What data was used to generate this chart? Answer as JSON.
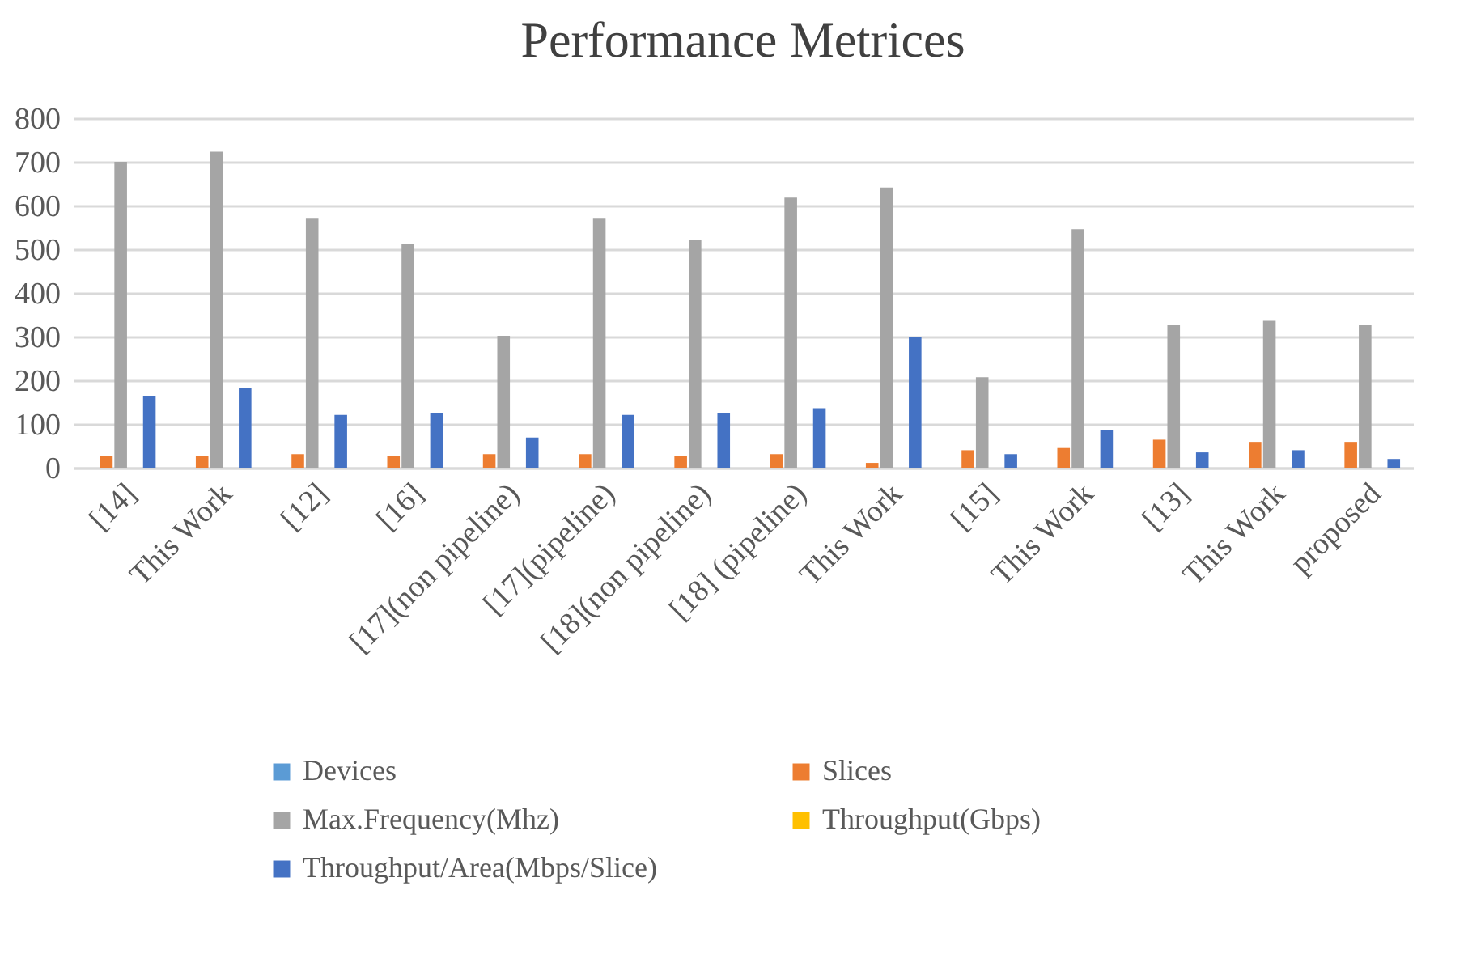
{
  "chart_data": {
    "type": "bar",
    "title": "Performance Metrices",
    "categories": [
      "[14]",
      "This Work",
      "[12]",
      "[16]",
      "[17](non pipeline)",
      "[17](pipeline)",
      "[18](non pipeline)",
      "[18] (pipeline)",
      "This Work",
      "[15]",
      "This Work",
      "[13]",
      "This Work",
      "proposed"
    ],
    "series": [
      {
        "name": "Devices",
        "color": "#5b9bd5",
        "values": [
          0,
          0,
          0,
          0,
          0,
          0,
          0,
          0,
          0,
          0,
          0,
          0,
          0,
          0
        ]
      },
      {
        "name": "Slices",
        "color": "#ed7d31",
        "values": [
          26,
          26,
          31,
          26,
          31,
          31,
          26,
          31,
          11,
          40,
          45,
          64,
          59,
          59
        ]
      },
      {
        "name": "Max.Frequency(Mhz)",
        "color": "#a5a5a5",
        "values": [
          700,
          723,
          570,
          513,
          302,
          570,
          521,
          618,
          641,
          207,
          546,
          326,
          336,
          326
        ]
      },
      {
        "name": "Throughput(Gbps)",
        "color": "#ffc000",
        "values": [
          0,
          0,
          0,
          0,
          0,
          0,
          0,
          0,
          0,
          0,
          0,
          0,
          0,
          0
        ]
      },
      {
        "name": "Throughput/Area(Mbps/Slice)",
        "color": "#4472c4",
        "values": [
          165,
          183,
          121,
          126,
          69,
          121,
          126,
          136,
          300,
          31,
          87,
          35,
          40,
          20
        ]
      }
    ],
    "ylim": [
      0,
      800
    ],
    "yticks": [
      0,
      100,
      200,
      300,
      400,
      500,
      600,
      700,
      800
    ],
    "grid": "y",
    "legend": "bottom",
    "stacked": false
  }
}
